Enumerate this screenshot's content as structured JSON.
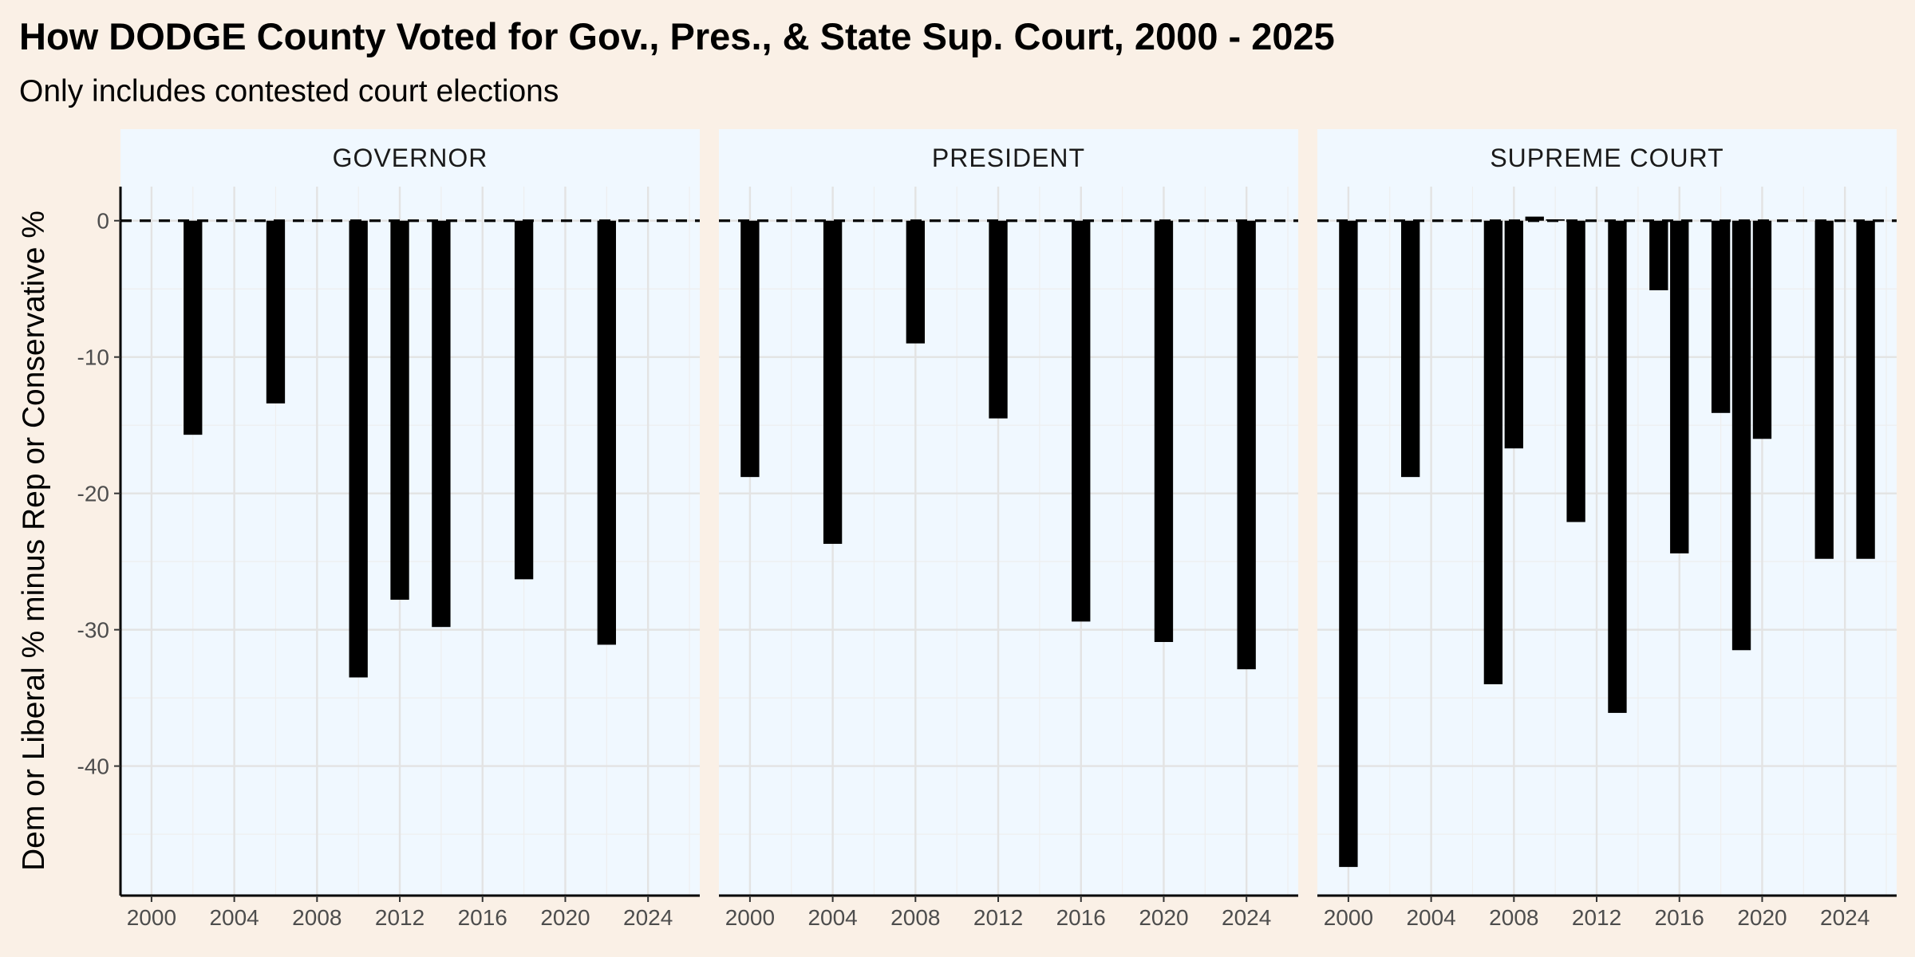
{
  "chart_data": {
    "type": "bar",
    "title": "How DODGE County Voted for Gov., Pres., & State Sup. Court, 2000 - 2025",
    "subtitle": "Only includes contested court elections",
    "xlabel": "",
    "ylabel": "Dem or Liberal % minus Rep or Conservative %",
    "xlim": [
      1998.5,
      2026.5
    ],
    "ylim": [
      -49.5,
      2.5
    ],
    "x_ticks": [
      2000,
      2004,
      2008,
      2012,
      2016,
      2020,
      2024
    ],
    "y_ticks": [
      0,
      -10,
      -20,
      -30,
      -40
    ],
    "reference_line": {
      "y": 0,
      "style": "dashed"
    },
    "bar_color": "#000000",
    "panel_background": "#f0f8ff",
    "strip_background": "#f0f8ff",
    "page_background": "#faf0e6",
    "grid": true,
    "facets": [
      {
        "name": "GOVERNOR",
        "points": [
          {
            "x": 2002,
            "y": -15.7
          },
          {
            "x": 2006,
            "y": -13.4
          },
          {
            "x": 2010,
            "y": -33.5
          },
          {
            "x": 2012,
            "y": -27.8
          },
          {
            "x": 2014,
            "y": -29.8
          },
          {
            "x": 2018,
            "y": -26.3
          },
          {
            "x": 2022,
            "y": -31.1
          }
        ]
      },
      {
        "name": "PRESIDENT",
        "points": [
          {
            "x": 2000,
            "y": -18.8
          },
          {
            "x": 2004,
            "y": -23.7
          },
          {
            "x": 2008,
            "y": -9.0
          },
          {
            "x": 2012,
            "y": -14.5
          },
          {
            "x": 2016,
            "y": -29.4
          },
          {
            "x": 2020,
            "y": -30.9
          },
          {
            "x": 2024,
            "y": -32.9
          }
        ]
      },
      {
        "name": "SUPREME COURT",
        "points": [
          {
            "x": 2000,
            "y": -47.4
          },
          {
            "x": 2003,
            "y": -18.8
          },
          {
            "x": 2007,
            "y": -34.0
          },
          {
            "x": 2008,
            "y": -16.7
          },
          {
            "x": 2009,
            "y": 0.3
          },
          {
            "x": 2010,
            "y": 0.1
          },
          {
            "x": 2011,
            "y": -22.1
          },
          {
            "x": 2013,
            "y": -36.1
          },
          {
            "x": 2015,
            "y": -5.1
          },
          {
            "x": 2016,
            "y": -24.4
          },
          {
            "x": 2018,
            "y": -14.1
          },
          {
            "x": 2019,
            "y": -31.5
          },
          {
            "x": 2020,
            "y": -16.0
          },
          {
            "x": 2023,
            "y": -24.8
          },
          {
            "x": 2025,
            "y": -24.8
          }
        ]
      }
    ]
  }
}
